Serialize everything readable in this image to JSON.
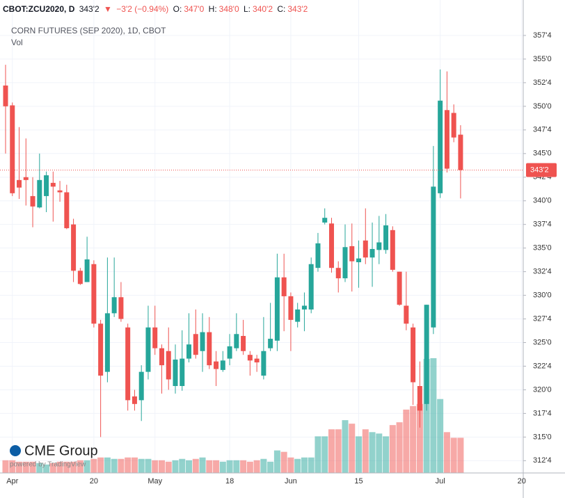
{
  "header": {
    "symbol": "CBOT:ZCU2020, D",
    "last": "343'2",
    "arrow": "▼",
    "change": "−3'2 (−0.94%)",
    "open_label": "O:",
    "open": "347'0",
    "high_label": "H:",
    "high": "348'0",
    "low_label": "L:",
    "low": "340'2",
    "close_label": "C:",
    "close": "343'2"
  },
  "logo": {
    "brand": "CME Group",
    "powered": "powered by TradingView"
  },
  "chart_data": {
    "type": "candlestick",
    "title": "CORN FUTURES (SEP 2020), 1D, CBOT",
    "volume_label": "Vol",
    "categories": [
      null,
      "Apr",
      null,
      null,
      null,
      null,
      null,
      null,
      null,
      null,
      null,
      null,
      null,
      "20",
      null,
      null,
      null,
      null,
      null,
      null,
      null,
      null,
      "May",
      null,
      null,
      null,
      null,
      null,
      null,
      null,
      null,
      null,
      null,
      "18",
      null,
      null,
      null,
      null,
      null,
      null,
      null,
      null,
      "Jun",
      null,
      null,
      null,
      null,
      null,
      null,
      null,
      null,
      null,
      "15",
      null,
      null,
      null,
      null,
      null,
      null,
      null,
      null,
      null,
      null,
      null,
      "Jul",
      null,
      null,
      null,
      null,
      null,
      null,
      null,
      null,
      null,
      null,
      null,
      "20"
    ],
    "open": [
      352.2,
      350.1,
      342.2,
      342.5,
      340.5,
      339.3,
      340.5,
      341.9,
      341.1,
      340.9,
      337.5,
      332.6,
      331.4,
      333.3,
      327,
      321.9,
      328.1,
      329.8,
      326.6,
      319.3,
      318.9,
      321.9,
      326.6,
      324.4,
      324.1,
      320.4,
      320.4,
      323.3,
      325.9,
      324.1,
      326.1,
      323,
      322.1,
      323.3,
      324.4,
      325.7,
      323.7,
      323.3,
      321.5,
      324.4,
      325.2,
      331.9,
      329.9,
      327.2,
      328.5,
      328.5,
      332.9,
      337.7,
      337.6,
      332.9,
      331.8,
      335.2,
      333.5,
      335.8,
      334,
      334.8,
      334.8,
      336.9,
      332.5,
      328.9,
      326.6,
      320.4,
      318.5,
      326.6,
      340.8,
      349.6,
      349.3,
      347,
      null,
      null,
      null,
      null,
      null,
      null,
      null,
      null,
      null
    ],
    "high": [
      354.4,
      350.4,
      347.8,
      346.6,
      342.5,
      345,
      343.1,
      343.1,
      342.1,
      341.7,
      338.1,
      332.9,
      336.2,
      333.7,
      327.4,
      334,
      334,
      331.4,
      327,
      320,
      322.6,
      328.9,
      328.9,
      324.8,
      326.6,
      324.8,
      326.3,
      328.1,
      328.5,
      328.1,
      327.7,
      324.1,
      324.1,
      325.9,
      328.1,
      327.4,
      324.1,
      323.7,
      327.7,
      329.2,
      334.4,
      334.4,
      330.3,
      329.2,
      330.3,
      334,
      336.6,
      339.2,
      338.2,
      333.6,
      337.5,
      337.6,
      335.8,
      339.2,
      337.7,
      338.4,
      338.6,
      337.3,
      332.5,
      332.5,
      327,
      323,
      329,
      345.8,
      353.9,
      353.7,
      350.2,
      348,
      null,
      null,
      null,
      null,
      null,
      null,
      null,
      null,
      null
    ],
    "low": [
      345,
      340.5,
      340.2,
      339.5,
      337.2,
      339.2,
      338.8,
      337.8,
      339.9,
      337,
      331.4,
      331.1,
      331.4,
      326.6,
      315,
      320.8,
      327.7,
      327.2,
      317.8,
      317.8,
      316.7,
      321.1,
      323.7,
      319.6,
      320,
      319.6,
      319.9,
      322.9,
      323.3,
      321.9,
      322.2,
      320.4,
      321.9,
      322.6,
      324.1,
      323.7,
      321.5,
      321.9,
      321.1,
      324.1,
      324.1,
      326.2,
      324.1,
      326.6,
      326.2,
      328.1,
      332.5,
      337.5,
      332.4,
      330.3,
      331.4,
      330.4,
      330.8,
      333.3,
      330.9,
      333.3,
      334.4,
      332.5,
      328.9,
      326.3,
      318.4,
      316,
      317.8,
      325.9,
      340.3,
      343,
      346.2,
      340.25,
      null,
      null,
      null,
      null,
      null,
      null,
      null,
      null,
      null
    ],
    "close": [
      350,
      340.8,
      341.4,
      342.2,
      339.4,
      342.2,
      342.7,
      341.5,
      340.9,
      337.1,
      332.6,
      331.2,
      333.8,
      327,
      321.5,
      328.1,
      329.8,
      327.5,
      318.9,
      318.5,
      321.9,
      326.6,
      324.4,
      322.6,
      321.1,
      323.2,
      323.3,
      324.8,
      323.7,
      326.1,
      322.6,
      322.2,
      323.1,
      324.6,
      325.9,
      324.1,
      323.1,
      322.9,
      324.1,
      325.4,
      331.9,
      329.9,
      327.4,
      328.5,
      328.9,
      333.3,
      335.5,
      338.2,
      332.9,
      331.8,
      335.1,
      333.6,
      333.9,
      334,
      334.9,
      335.6,
      337.4,
      332.7,
      329,
      327,
      320.8,
      317.8,
      329,
      341.5,
      350.6,
      343.4,
      346.7,
      343.25,
      null,
      null,
      null,
      null,
      null,
      null,
      null,
      null,
      null
    ],
    "volume": [
      18,
      18,
      16,
      16,
      16,
      14,
      12,
      14,
      16,
      16,
      16,
      18,
      18,
      20,
      22,
      22,
      20,
      20,
      22,
      22,
      20,
      20,
      18,
      18,
      16,
      18,
      20,
      18,
      20,
      22,
      18,
      18,
      16,
      18,
      18,
      18,
      16,
      18,
      20,
      16,
      32,
      30,
      22,
      20,
      22,
      22,
      52,
      52,
      62,
      62,
      75,
      70,
      52,
      62,
      58,
      56,
      52,
      68,
      72,
      90,
      95,
      98,
      162,
      163,
      105,
      58,
      50,
      50,
      null,
      null,
      null,
      null,
      null,
      null,
      null,
      null,
      null
    ],
    "up_color": "#26a69a",
    "down_color": "#ef5350",
    "last_price": {
      "value": 343.25,
      "label": "343'2"
    },
    "ylim": [
      311.2,
      361.25
    ],
    "yticks": [
      {
        "value": 312.5,
        "label": "312'4"
      },
      {
        "value": 315,
        "label": "315'0"
      },
      {
        "value": 317.5,
        "label": "317'4"
      },
      {
        "value": 320,
        "label": "320'0"
      },
      {
        "value": 322.5,
        "label": "322'4"
      },
      {
        "value": 325,
        "label": "325'0"
      },
      {
        "value": 327.5,
        "label": "327'4"
      },
      {
        "value": 330,
        "label": "330'0"
      },
      {
        "value": 332.5,
        "label": "332'4"
      },
      {
        "value": 335,
        "label": "335'0"
      },
      {
        "value": 337.5,
        "label": "337'4"
      },
      {
        "value": 340,
        "label": "340'0"
      },
      {
        "value": 342.5,
        "label": "342'4"
      },
      {
        "value": 345,
        "label": "345'0"
      },
      {
        "value": 347.5,
        "label": "347'4"
      },
      {
        "value": 350,
        "label": "350'0"
      },
      {
        "value": 352.5,
        "label": "352'4"
      },
      {
        "value": 355,
        "label": "355'0"
      },
      {
        "value": 357.5,
        "label": "357'4"
      }
    ],
    "grid": true
  }
}
